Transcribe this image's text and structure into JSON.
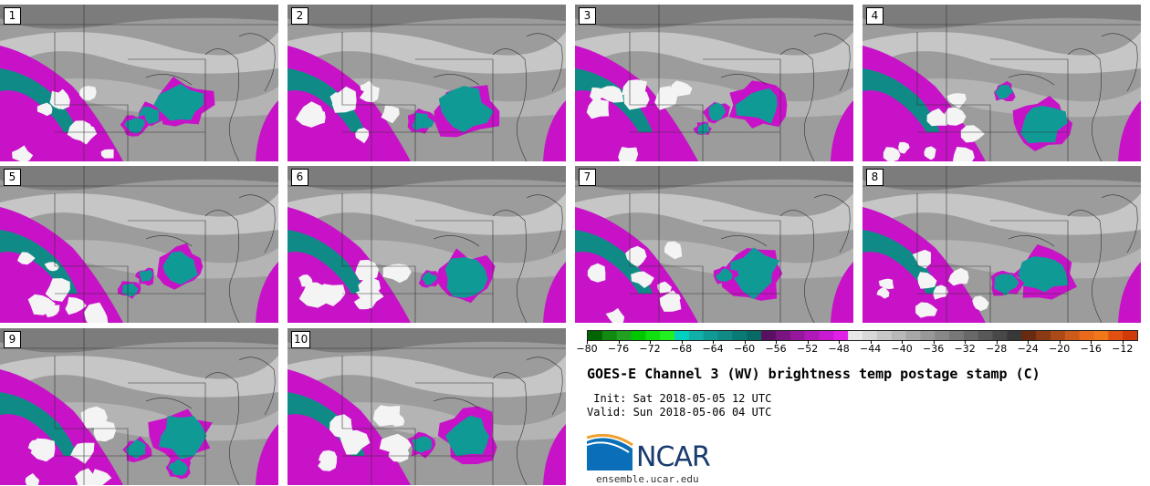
{
  "panels": [
    {
      "label": "1"
    },
    {
      "label": "2"
    },
    {
      "label": "3"
    },
    {
      "label": "4"
    },
    {
      "label": "5"
    },
    {
      "label": "6"
    },
    {
      "label": "7"
    },
    {
      "label": "8"
    },
    {
      "label": "9"
    },
    {
      "label": "10"
    }
  ],
  "colorbar": {
    "ticks": [
      "−80",
      "−76",
      "−72",
      "−68",
      "−64",
      "−60",
      "−56",
      "−52",
      "−48",
      "−44",
      "−40",
      "−36",
      "−32",
      "−28",
      "−24",
      "−20",
      "−16",
      "−12"
    ],
    "min": -80,
    "max": -10,
    "colors": [
      "#006400",
      "#128a12",
      "#22a022",
      "#00c800",
      "#10e010",
      "#20f020",
      "#00d0c0",
      "#10b0a8",
      "#109a96",
      "#108a86",
      "#0a7a76",
      "#086a66",
      "#5a1060",
      "#7a1480",
      "#96169c",
      "#b018b8",
      "#c81ad0",
      "#e020e8",
      "#e8e8e8",
      "#d8d8d8",
      "#c8c8c8",
      "#b8b8b8",
      "#a8a8a8",
      "#989898",
      "#888888",
      "#787878",
      "#686868",
      "#585858",
      "#484848",
      "#383838",
      "#6a2a10",
      "#8a3a14",
      "#aa4a18",
      "#cc5a1a",
      "#e86a1a",
      "#f07818",
      "#e05010",
      "#d03a08"
    ]
  },
  "title": "GOES-E Channel 3 (WV) brightness temp postage stamp (C)",
  "init_line": " Init: Sat 2018-05-05 12 UTC",
  "valid_line": "Valid: Sun 2018-05-06 04 UTC",
  "logo_text": "NCAR",
  "site": "ensemble.ucar.edu"
}
